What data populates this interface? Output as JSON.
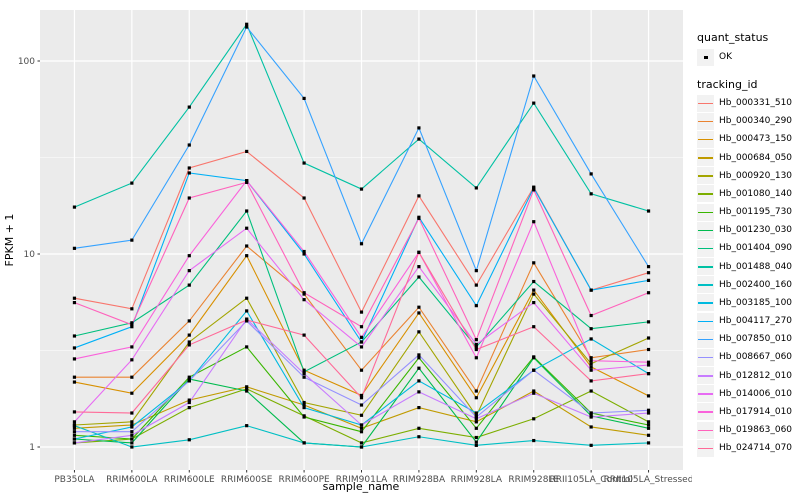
{
  "chart_data": {
    "type": "line",
    "title": "",
    "xlabel": "sample_name",
    "ylabel": "FPKM + 1",
    "y_scale": "log10",
    "ylim": [
      0.76,
      240
    ],
    "y_major_ticks": [
      1,
      10,
      100
    ],
    "y_minor_gridlines": [
      3.162,
      31.62
    ],
    "grid": "white major+minor gridlines on grey panel",
    "legend_position": "right",
    "point_shape": "small black square (quant_status OK)",
    "categories": [
      "PB350LA",
      "RRIM600LA",
      "RRIM600LE",
      "RRIM600SE",
      "RRIM600PE",
      "RRIM901LA",
      "RRIM928BA",
      "RRIM928LA",
      "RRIM928LE",
      "RRII105LA_Control",
      "RRII105LA_Stressed"
    ],
    "series": [
      {
        "name": "Hb_000331_510",
        "color": "#F8766D",
        "values": [
          5.9,
          5.2,
          27.9,
          34.0,
          19.5,
          5.0,
          20.0,
          6.9,
          22.2,
          6.5,
          8.0
        ]
      },
      {
        "name": "Hb_000340_290",
        "color": "#EA8331",
        "values": [
          2.3,
          2.3,
          4.5,
          11.0,
          6.2,
          2.5,
          5.3,
          1.95,
          9.0,
          2.9,
          3.2
        ]
      },
      {
        "name": "Hb_000473_150",
        "color": "#D89000",
        "values": [
          2.17,
          1.9,
          3.8,
          9.8,
          2.5,
          1.85,
          4.95,
          1.8,
          6.5,
          2.6,
          1.84
        ]
      },
      {
        "name": "Hb_000684_050",
        "color": "#C09B00",
        "values": [
          1.25,
          1.3,
          1.75,
          2.05,
          1.65,
          1.25,
          1.6,
          1.35,
          1.95,
          1.27,
          1.15
        ]
      },
      {
        "name": "Hb_000920_130",
        "color": "#A3A500",
        "values": [
          1.3,
          1.35,
          3.5,
          5.9,
          1.7,
          1.46,
          3.95,
          1.45,
          6.2,
          2.7,
          3.67
        ]
      },
      {
        "name": "Hb_001080_140",
        "color": "#7CAE00",
        "values": [
          1.05,
          1.1,
          1.6,
          2.0,
          1.45,
          1.05,
          1.25,
          1.12,
          1.4,
          1.95,
          1.35
        ]
      },
      {
        "name": "Hb_001195_730",
        "color": "#39B600",
        "values": [
          1.15,
          1.1,
          2.3,
          3.3,
          1.43,
          1.2,
          2.9,
          1.25,
          2.93,
          1.5,
          1.3
        ]
      },
      {
        "name": "Hb_001230_030",
        "color": "#00BB4E",
        "values": [
          1.1,
          1.05,
          2.25,
          1.95,
          1.05,
          1.0,
          2.56,
          1.06,
          2.9,
          1.45,
          1.25
        ]
      },
      {
        "name": "Hb_001404_090",
        "color": "#00BF7D",
        "values": [
          3.76,
          4.4,
          6.9,
          16.7,
          2.45,
          3.5,
          7.6,
          3.3,
          7.2,
          4.1,
          4.45
        ]
      },
      {
        "name": "Hb_001488_040",
        "color": "#00C1A3",
        "values": [
          17.5,
          23.3,
          57.7,
          155.0,
          29.6,
          21.7,
          39.4,
          22.0,
          60.5,
          20.5,
          16.7
        ]
      },
      {
        "name": "Hb_002400_160",
        "color": "#00BFC4",
        "values": [
          1.29,
          1.0,
          1.09,
          1.29,
          1.05,
          1.0,
          1.13,
          1.02,
          1.08,
          1.02,
          1.05
        ]
      },
      {
        "name": "Hb_003185_100",
        "color": "#00BAE0",
        "values": [
          1.1,
          1.27,
          2.2,
          5.07,
          1.6,
          1.3,
          2.2,
          1.5,
          2.5,
          3.63,
          2.4
        ]
      },
      {
        "name": "Hb_004117_270",
        "color": "#00B0F6",
        "values": [
          3.26,
          4.2,
          26.3,
          24.0,
          10.0,
          3.5,
          15.5,
          5.4,
          22.0,
          6.5,
          7.3
        ]
      },
      {
        "name": "Hb_007850_010",
        "color": "#35A2FF",
        "values": [
          10.7,
          11.8,
          36.7,
          150.0,
          64.0,
          11.3,
          45.0,
          8.2,
          83.6,
          26.0,
          8.6
        ]
      },
      {
        "name": "Hb_008667_060",
        "color": "#9590FF",
        "values": [
          1.2,
          1.2,
          2.2,
          4.5,
          2.3,
          1.65,
          3.0,
          1.43,
          2.5,
          1.5,
          1.55
        ]
      },
      {
        "name": "Hb_012812_010",
        "color": "#C77CFF",
        "values": [
          1.05,
          1.15,
          1.7,
          4.6,
          2.4,
          1.3,
          1.93,
          1.4,
          1.9,
          1.43,
          1.5
        ]
      },
      {
        "name": "Hb_014006_010",
        "color": "#E76BF3",
        "values": [
          1.35,
          2.83,
          8.2,
          13.6,
          5.8,
          3.3,
          8.6,
          3.4,
          5.6,
          2.5,
          2.66
        ]
      },
      {
        "name": "Hb_017914_010",
        "color": "#FA62DB",
        "values": [
          2.86,
          3.3,
          9.8,
          24.0,
          10.3,
          3.7,
          10.2,
          2.9,
          14.7,
          2.8,
          2.75
        ]
      },
      {
        "name": "Hb_019863_060",
        "color": "#FF62BC",
        "values": [
          5.6,
          4.3,
          19.5,
          23.5,
          6.3,
          4.2,
          15.3,
          3.6,
          21.5,
          4.8,
          6.3
        ]
      },
      {
        "name": "Hb_024714_070",
        "color": "#FF6A98",
        "values": [
          1.52,
          1.5,
          3.38,
          4.55,
          3.8,
          1.8,
          10.2,
          3.2,
          4.2,
          2.2,
          2.4
        ]
      }
    ],
    "legend": {
      "quant_status_title": "quant_status",
      "ok_label": "OK",
      "tracking_title": "tracking_id"
    }
  },
  "colors": {
    "panel_background": "#EBEBEB",
    "gridline": "#FFFFFF",
    "point": "#000000",
    "tick_text": "#4D4D4D",
    "legend_key_background": "#F2F2F2"
  }
}
